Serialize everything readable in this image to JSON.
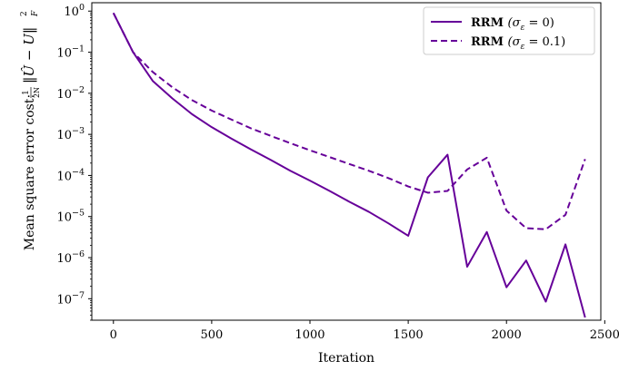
{
  "chart_data": {
    "type": "line",
    "xlabel": "Iteration",
    "ylabel_text": "Mean square error cost:",
    "ylabel_formula": "1/(2N) ||Û − U||²_F",
    "yscale": "log",
    "xlim": [
      -110,
      2480
    ],
    "ylim": [
      3e-08,
      1.6
    ],
    "xticks": [
      0,
      500,
      1000,
      1500,
      2000,
      2500
    ],
    "yticks_exp": [
      0,
      -1,
      -2,
      -3,
      -4,
      -5,
      -6,
      -7
    ],
    "ytick_base": "10",
    "grid": false,
    "legend_position": "upper right",
    "series": [
      {
        "name": "RRM (σ_ε = 0)",
        "legend_bold": "RRM",
        "legend_math": "(σ",
        "legend_sub": "ε",
        "legend_rest": " = 0)",
        "color": "#660099",
        "style": "solid",
        "x": [
          0,
          100,
          200,
          300,
          400,
          500,
          600,
          700,
          800,
          900,
          1000,
          1100,
          1200,
          1300,
          1400,
          1500,
          1600,
          1700,
          1800,
          1900,
          2000,
          2100,
          2200,
          2300,
          2400
        ],
        "y": [
          0.9,
          0.1,
          0.02,
          0.0075,
          0.0031,
          0.0015,
          0.00079,
          0.00043,
          0.00024,
          0.00013,
          7.5e-05,
          4.2e-05,
          2.3e-05,
          1.3e-05,
          6.8e-06,
          3.4e-06,
          9e-05,
          0.00032,
          6e-07,
          4.2e-06,
          1.9e-07,
          8.5e-07,
          8.5e-08,
          2.1e-06,
          3.5e-08
        ]
      },
      {
        "name": "RRM (σ_ε = 0.1)",
        "legend_bold": "RRM",
        "legend_math": "(σ",
        "legend_sub": "ε",
        "legend_rest": " = 0.1)",
        "color": "#660099",
        "style": "dashed",
        "x": [
          0,
          100,
          200,
          300,
          400,
          500,
          600,
          700,
          800,
          900,
          1000,
          1100,
          1200,
          1300,
          1400,
          1500,
          1600,
          1700,
          1800,
          1900,
          2000,
          2100,
          2200,
          2300,
          2400
        ],
        "y": [
          0.9,
          0.1,
          0.033,
          0.014,
          0.0068,
          0.0038,
          0.0023,
          0.0014,
          0.00092,
          0.00061,
          0.00041,
          0.00028,
          0.00019,
          0.00013,
          8.6e-05,
          5.4e-05,
          3.8e-05,
          4.2e-05,
          0.00014,
          0.00027,
          1.4e-05,
          5.2e-06,
          4.9e-06,
          1.1e-05,
          0.00025
        ]
      }
    ]
  }
}
